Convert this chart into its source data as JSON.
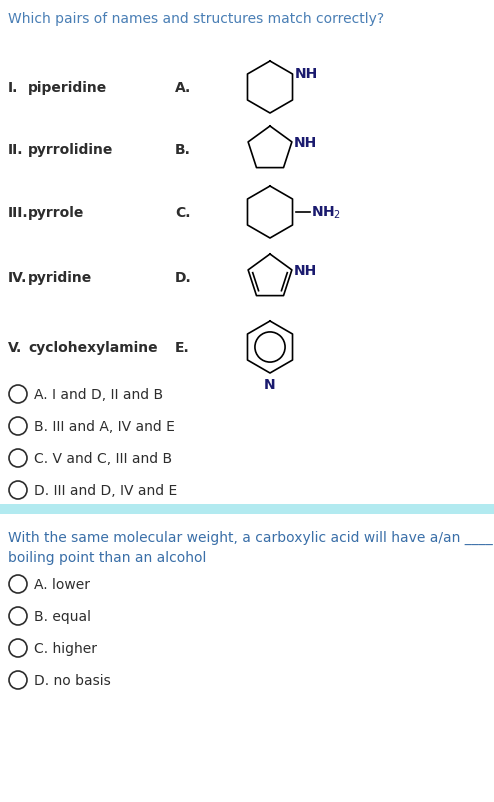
{
  "title": "Which pairs of names and structures match correctly?",
  "title_color": "#4a7fb5",
  "bg_color": "#ffffff",
  "separator_color": "#b2eaf0",
  "text_color": "#2d2d2d",
  "mol_label_color": "#1a1a6e",
  "q2_text_color": "#3a6fa8",
  "q1_names": [
    {
      "roman": "I.",
      "name": "  piperidine"
    },
    {
      "roman": "II.",
      "name": " pyrrolidine"
    },
    {
      "roman": "III.",
      "name": " pyrrole"
    },
    {
      "roman": "IV.",
      "name": " pyridine"
    },
    {
      "roman": "V.",
      "name": " cyclohexylamine"
    }
  ],
  "q1_letters": [
    "A.",
    "B.",
    "C.",
    "D.",
    "E."
  ],
  "q1_options": [
    "A. I and D, II and B",
    "B. III and A, IV and E",
    "C. V and C, III and B",
    "D. III and D, IV and E"
  ],
  "q2_question_line1": "With the same molecular weight, a carboxylic acid will have a/an ____",
  "q2_question_line2": "boiling point than an alcohol",
  "q2_options": [
    "A. lower",
    "B. equal",
    "C. higher",
    "D. no basis"
  ],
  "font_size_title": 10,
  "font_size_body": 10,
  "font_size_mol": 10
}
